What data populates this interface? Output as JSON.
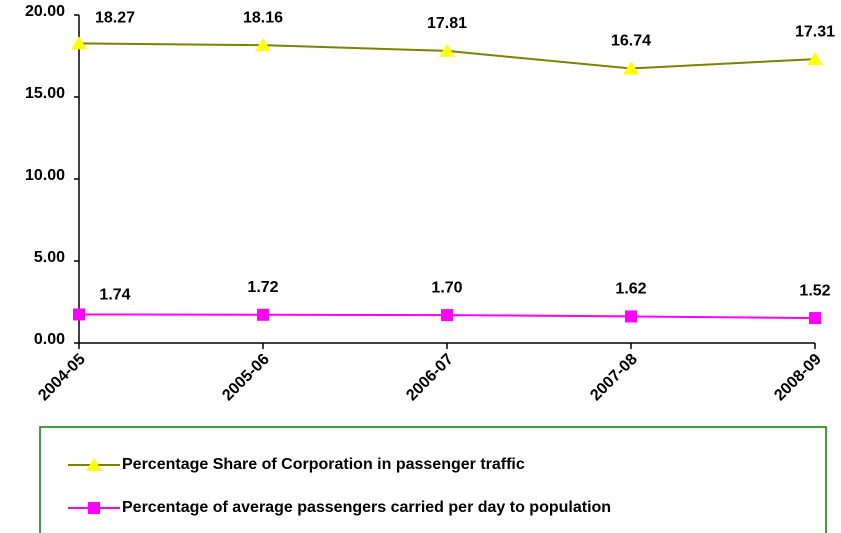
{
  "chart_data": {
    "type": "line",
    "categories": [
      "2004-05",
      "2005-06",
      "2006-07",
      "2007-08",
      "2008-09"
    ],
    "series": [
      {
        "name": "Percentage Share of Corporation in passenger traffic",
        "color": "#808000",
        "marker": "triangle",
        "marker_color": "#ffff00",
        "values": [
          18.27,
          18.16,
          17.81,
          16.74,
          17.31
        ],
        "value_labels": [
          "18.27",
          "18.16",
          "17.81",
          "16.74",
          "17.31"
        ]
      },
      {
        "name": "Percentage of average passengers carried per day to population",
        "color": "#ff00ff",
        "marker": "square",
        "marker_color": "#ff00ff",
        "values": [
          1.74,
          1.72,
          1.7,
          1.62,
          1.52
        ],
        "value_labels": [
          "1.74",
          "1.72",
          "1.70",
          "1.62",
          "1.52"
        ]
      }
    ],
    "ylim": [
      0,
      20
    ],
    "yticks": [
      {
        "value": 0,
        "label": "0.00"
      },
      {
        "value": 5,
        "label": "5.00"
      },
      {
        "value": 10,
        "label": "10.00"
      },
      {
        "value": 15,
        "label": "15.00"
      },
      {
        "value": 20,
        "label": "20.00"
      }
    ],
    "grid": false
  }
}
